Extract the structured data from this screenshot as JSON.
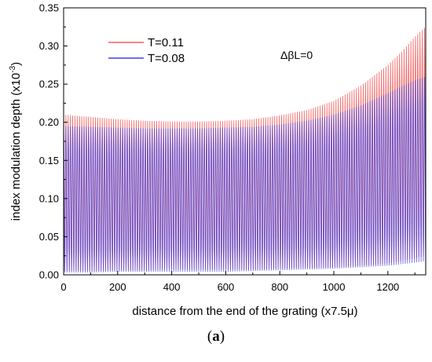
{
  "chart_data": {
    "type": "line",
    "xlabel": "distance from the end of the grating (x7.5μ)",
    "ylabel_main": "index modulation depth (x10",
    "ylabel_exp": "-3",
    "ylabel_close": ")",
    "annotation": "ΔβL=0",
    "xlim": [
      0,
      1340
    ],
    "ylim": [
      0.0,
      0.35
    ],
    "x_ticks": [
      0,
      200,
      400,
      600,
      800,
      1000,
      1200
    ],
    "y_ticks": [
      "0.00",
      "0.05",
      "0.10",
      "0.15",
      "0.20",
      "0.25",
      "0.30",
      "0.35"
    ],
    "grid": false,
    "legend_position": "top-left",
    "oscillation_period": 8.4,
    "series": [
      {
        "name": "T=0.11",
        "color": "#f06060",
        "envelope_x": [
          0,
          100,
          200,
          300,
          400,
          500,
          600,
          700,
          800,
          900,
          1000,
          1100,
          1200,
          1250,
          1300,
          1340
        ],
        "upper": [
          0.21,
          0.207,
          0.204,
          0.202,
          0.201,
          0.201,
          0.202,
          0.204,
          0.209,
          0.216,
          0.228,
          0.248,
          0.275,
          0.292,
          0.312,
          0.325
        ],
        "lower": [
          0.005,
          0.005,
          0.006,
          0.006,
          0.007,
          0.007,
          0.007,
          0.007,
          0.008,
          0.009,
          0.01,
          0.012,
          0.015,
          0.018,
          0.022,
          0.025
        ]
      },
      {
        "name": "T=0.08",
        "color": "#4040e0",
        "envelope_x": [
          0,
          100,
          200,
          300,
          400,
          500,
          600,
          700,
          800,
          900,
          1000,
          1100,
          1200,
          1250,
          1300,
          1340
        ],
        "upper": [
          0.195,
          0.194,
          0.193,
          0.192,
          0.192,
          0.192,
          0.193,
          0.194,
          0.197,
          0.202,
          0.21,
          0.222,
          0.238,
          0.247,
          0.255,
          0.26
        ],
        "lower": [
          0.003,
          0.003,
          0.004,
          0.004,
          0.004,
          0.004,
          0.004,
          0.005,
          0.006,
          0.007,
          0.008,
          0.01,
          0.012,
          0.014,
          0.016,
          0.018
        ]
      }
    ]
  },
  "caption": {
    "open": "(",
    "letter": "a",
    "close": ")"
  }
}
